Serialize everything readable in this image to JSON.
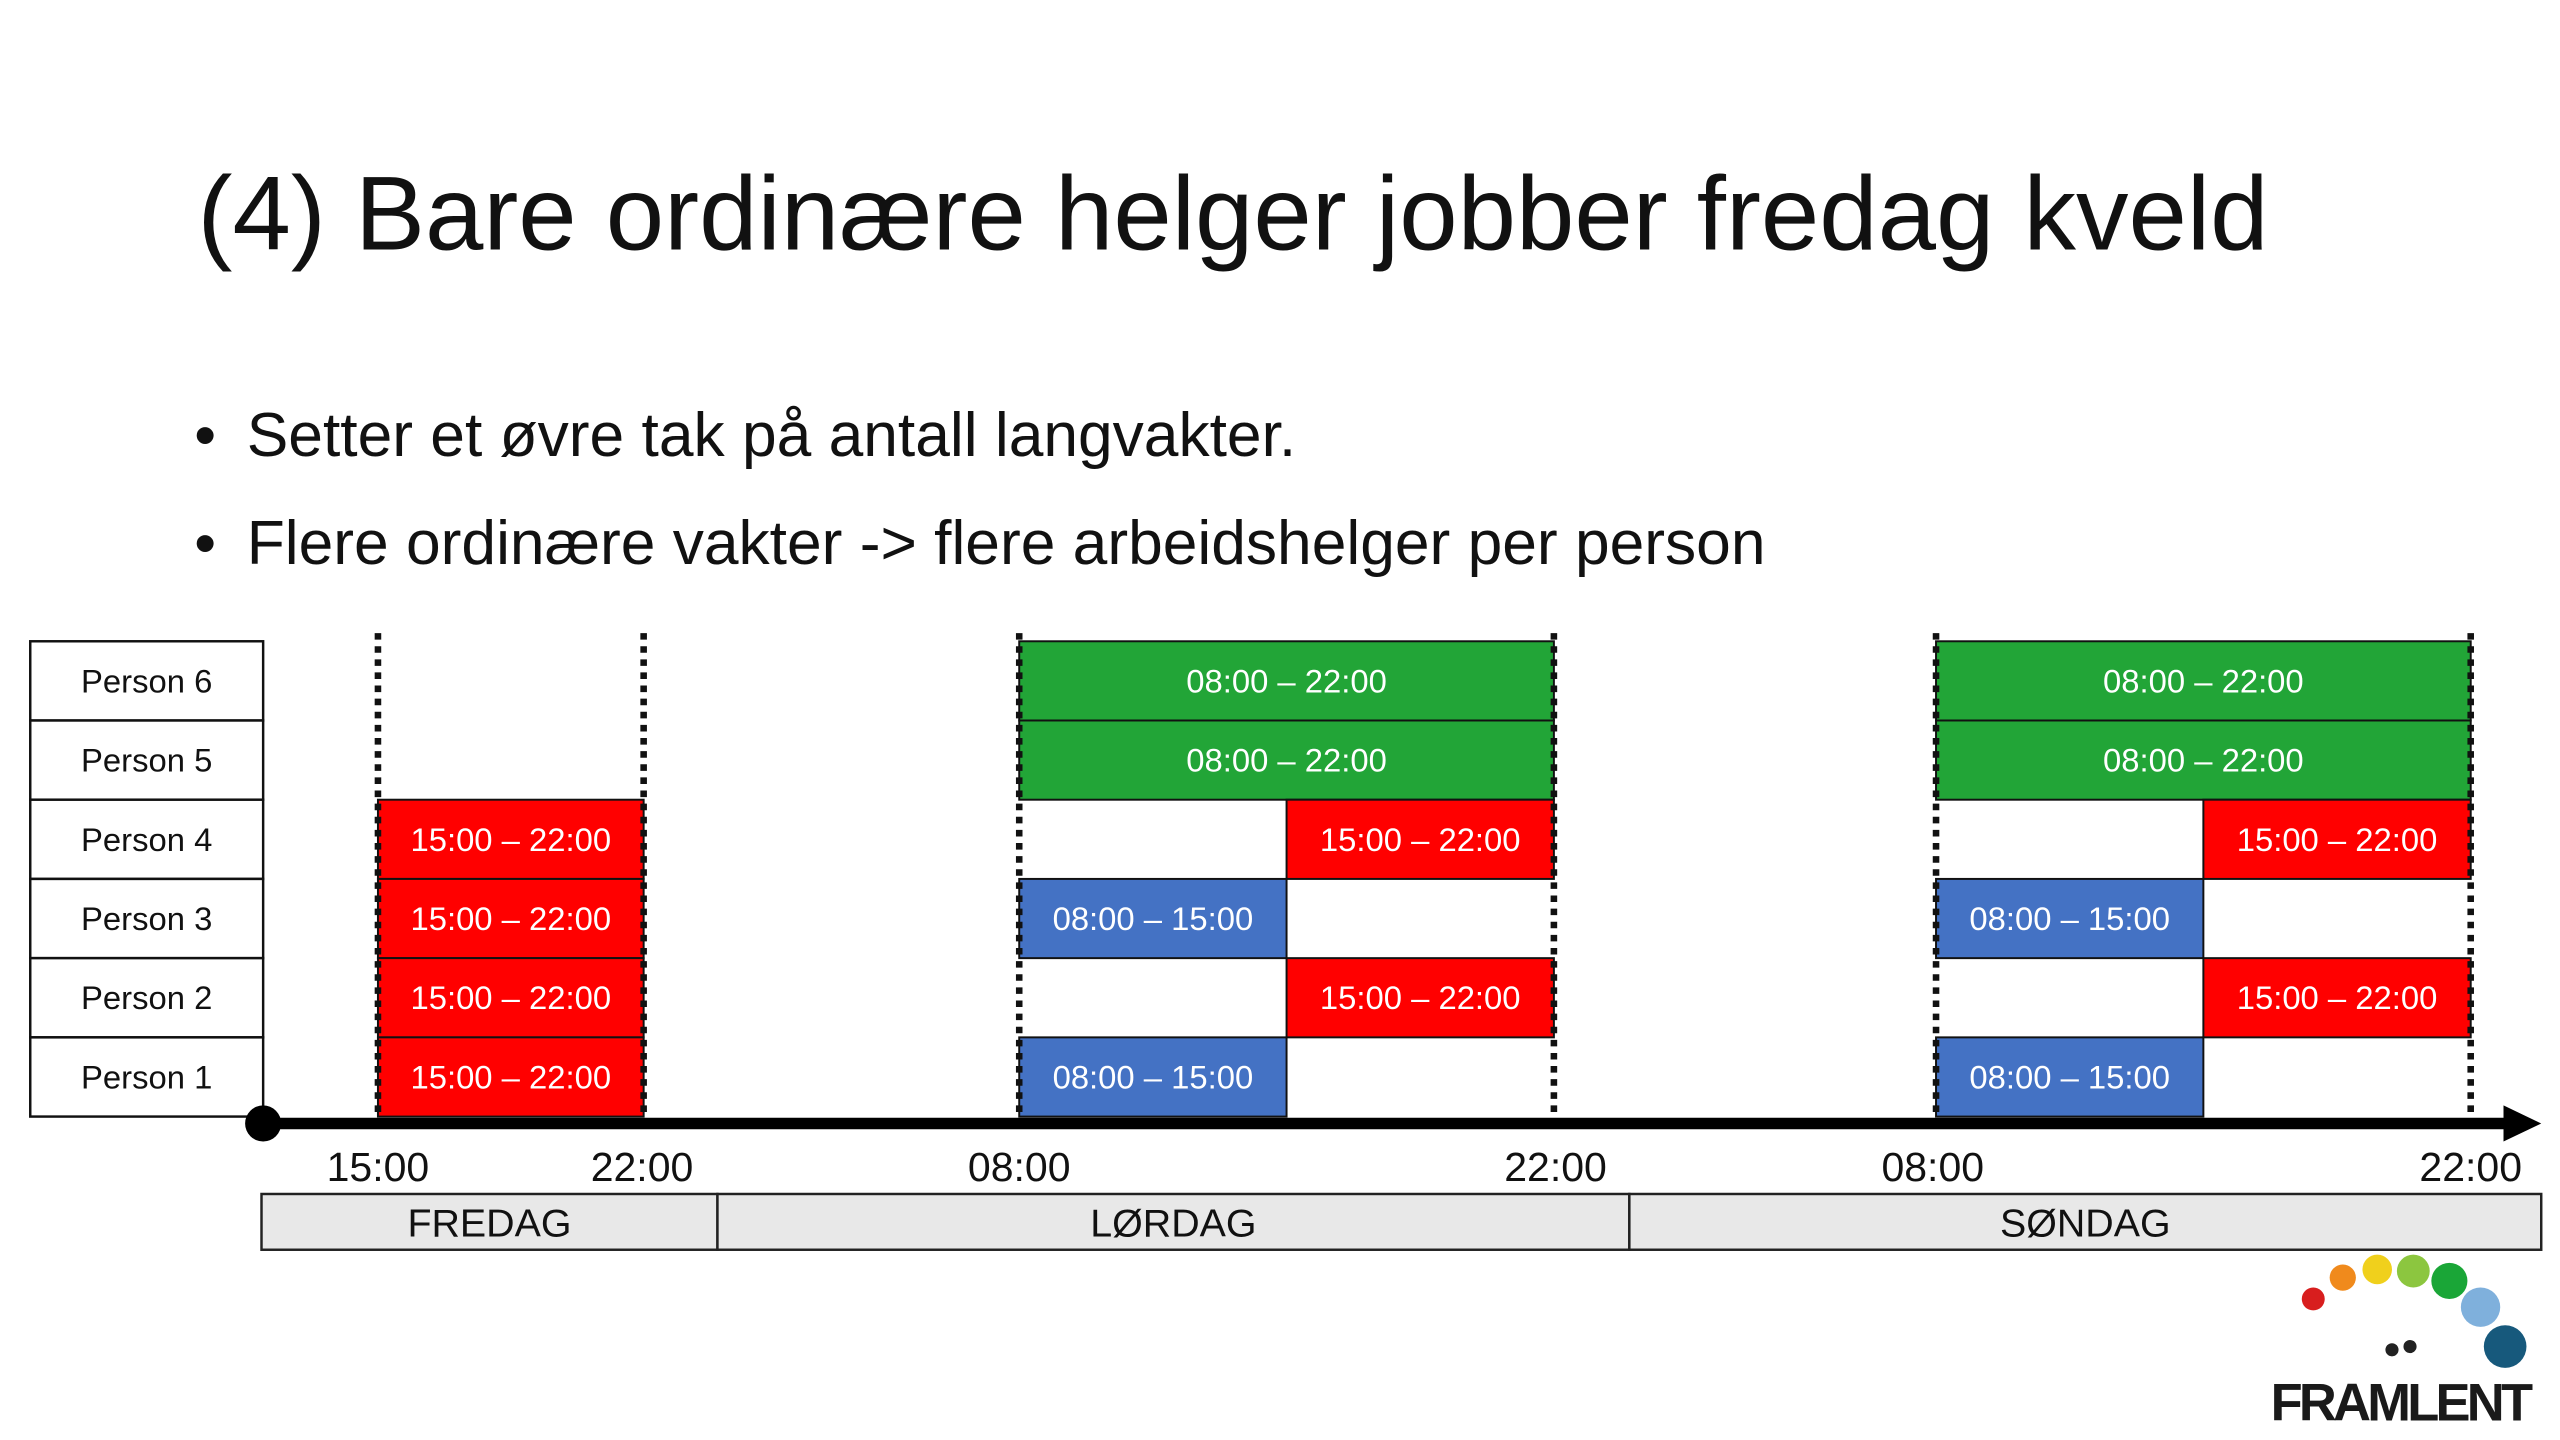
{
  "header": {
    "title": "(4) Bare ordinære helger jobber fredag kveld"
  },
  "bullets": [
    "Setter et øvre tak på antall langvakter.",
    "Flere ordinære vakter -> flere arbeidshelger per person"
  ],
  "schedule": {
    "people": [
      {
        "name": "Person 6",
        "shifts": [
          null,
          {
            "text": "08:00 – 22:00",
            "color": "#22a537"
          },
          {
            "text": "08:00 – 22:00",
            "color": "#22a537"
          }
        ]
      },
      {
        "name": "Person 5",
        "shifts": [
          null,
          {
            "text": "08:00 – 22:00",
            "color": "#22a537"
          },
          {
            "text": "08:00 – 22:00",
            "color": "#22a537"
          }
        ]
      },
      {
        "name": "Person 4",
        "shifts": [
          {
            "text": "15:00 – 22:00",
            "color": "#ff0000"
          },
          {
            "text": "15:00 – 22:00",
            "color": "#ff0000"
          },
          {
            "text": "15:00 – 22:00",
            "color": "#ff0000"
          }
        ]
      },
      {
        "name": "Person 3",
        "shifts": [
          {
            "text": "15:00 – 22:00",
            "color": "#ff0000"
          },
          {
            "text": "08:00 – 15:00",
            "color": "#4472c4"
          },
          {
            "text": "08:00 – 15:00",
            "color": "#4472c4"
          }
        ]
      },
      {
        "name": "Person 2",
        "shifts": [
          {
            "text": "15:00 – 22:00",
            "color": "#ff0000"
          },
          {
            "text": "15:00 – 22:00",
            "color": "#ff0000"
          },
          {
            "text": "15:00 – 22:00",
            "color": "#ff0000"
          }
        ]
      },
      {
        "name": "Person 1",
        "shifts": [
          {
            "text": "15:00 – 22:00",
            "color": "#ff0000"
          },
          {
            "text": "08:00 – 15:00",
            "color": "#4472c4"
          },
          {
            "text": "08:00 – 15:00",
            "color": "#4472c4"
          }
        ]
      }
    ],
    "axis_labels": [
      "15:00",
      "22:00",
      "08:00",
      "22:00",
      "08:00",
      "22:00"
    ],
    "days": [
      "FREDAG",
      "LØRDAG",
      "SØNDAG"
    ]
  },
  "logo": {
    "text": "FRAMLENT"
  }
}
